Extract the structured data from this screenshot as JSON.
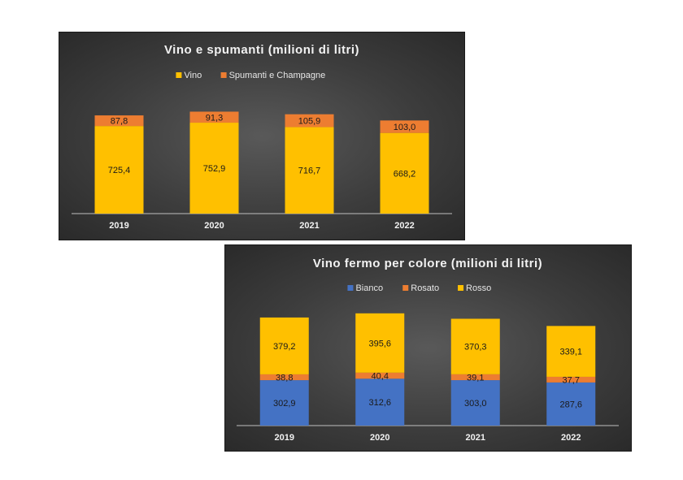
{
  "chart_data": [
    {
      "type": "bar",
      "stacked": true,
      "title": "Vino e spumanti (milioni di litri)",
      "categories": [
        "2019",
        "2020",
        "2021",
        "2022"
      ],
      "series": [
        {
          "name": "Vino",
          "values": [
            725.4,
            752.9,
            716.7,
            668.2
          ],
          "labels": [
            "725,4",
            "752,9",
            "716,7",
            "668,2"
          ],
          "color": "#ffc000"
        },
        {
          "name": "Spumanti e Champagne",
          "values": [
            87.8,
            91.3,
            105.9,
            103.0
          ],
          "labels": [
            "87,8",
            "91,3",
            "105,9",
            "103,0"
          ],
          "color": "#ed7d31"
        }
      ],
      "legend": "top",
      "grid": false
    },
    {
      "type": "bar",
      "stacked": true,
      "title": "Vino fermo per colore (milioni di litri)",
      "categories": [
        "2019",
        "2020",
        "2021",
        "2022"
      ],
      "series": [
        {
          "name": "Bianco",
          "values": [
            302.9,
            312.6,
            303.0,
            287.6
          ],
          "labels": [
            "302,9",
            "312,6",
            "303,0",
            "287,6"
          ],
          "color": "#4472c4"
        },
        {
          "name": "Rosato",
          "values": [
            38.8,
            40.4,
            39.1,
            37.7
          ],
          "labels": [
            "38,8",
            "40,4",
            "39,1",
            "37,7"
          ],
          "color": "#ed7d31"
        },
        {
          "name": "Rosso",
          "values": [
            379.2,
            395.6,
            370.3,
            339.1
          ],
          "labels": [
            "379,2",
            "395,6",
            "370,3",
            "339,1"
          ],
          "color": "#ffc000"
        }
      ],
      "legend": "top",
      "grid": false
    }
  ]
}
